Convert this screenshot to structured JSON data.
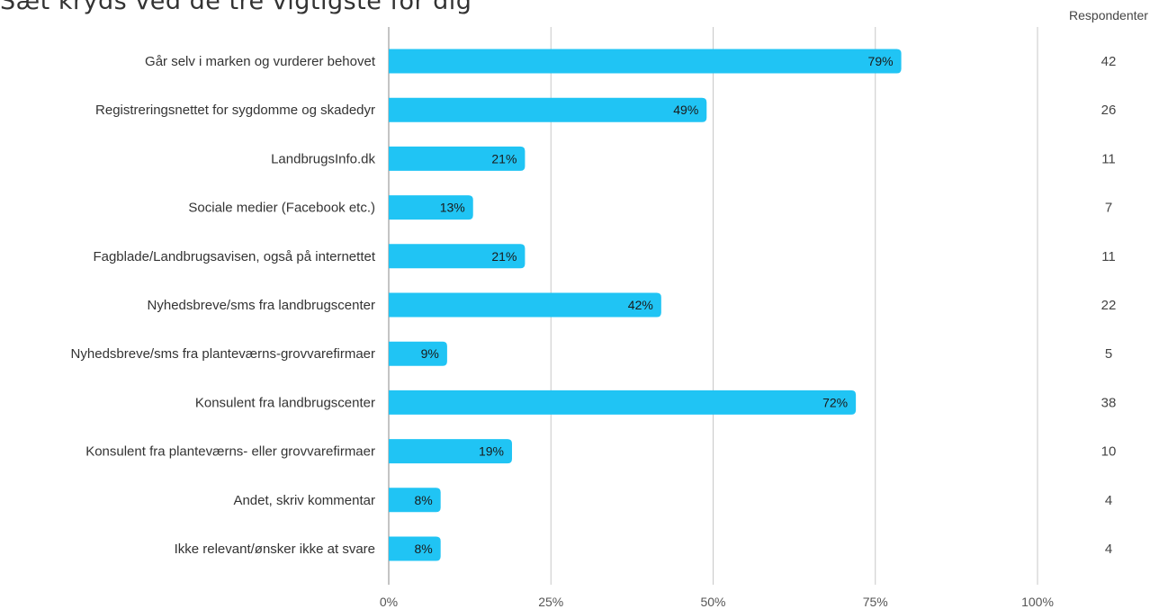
{
  "chart_data": {
    "type": "bar",
    "orientation": "horizontal",
    "title": "Sæt kryds ved de tre vigtigste for dig",
    "categories": [
      "Går selv i marken og vurderer behovet",
      "Registreringsnettet for sygdomme og skadedyr",
      "LandbrugsInfo.dk",
      "Sociale medier (Facebook etc.)",
      "Fagblade/Landbrugsavisen, også på internettet",
      "Nyhedsbreve/sms fra landbrugscenter",
      "Nyhedsbreve/sms fra planteværns-grovvarefirmaer",
      "Konsulent fra landbrugscenter",
      "Konsulent fra planteværns- eller grovvarefirmaer",
      "Andet, skriv kommentar",
      "Ikke relevant/ønsker ikke at svare"
    ],
    "values": [
      79,
      49,
      21,
      13,
      21,
      42,
      9,
      72,
      19,
      8,
      8
    ],
    "value_labels": [
      "79%",
      "49%",
      "21%",
      "13%",
      "21%",
      "42%",
      "9%",
      "72%",
      "19%",
      "8%",
      "8%"
    ],
    "xlim": [
      0,
      100
    ],
    "xticks": [
      "0%",
      "25%",
      "50%",
      "75%",
      "100%"
    ],
    "grid": true,
    "respondents_header": "Respondenter",
    "respondents": [
      "42",
      "26",
      "11",
      "7",
      "11",
      "22",
      "5",
      "38",
      "10",
      "4",
      "4"
    ],
    "colors": {
      "bar": "#20c4f4",
      "grid": "#c8c8c8",
      "axis": "#b0b0b0"
    }
  }
}
